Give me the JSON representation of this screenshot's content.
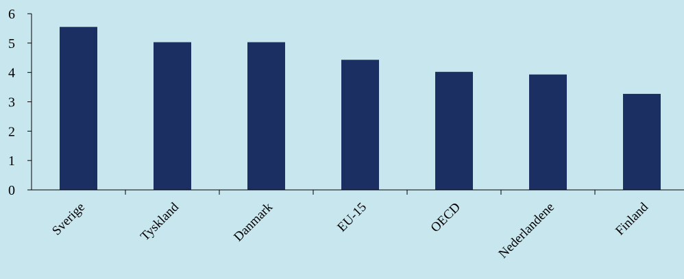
{
  "chart_data": {
    "type": "bar",
    "categories": [
      "Sverige",
      "Tyskland",
      "Danmark",
      "EU-15",
      "OECD",
      "Nederlandene",
      "Finland"
    ],
    "values": [
      5.55,
      5.03,
      5.03,
      4.43,
      4.02,
      3.93,
      3.27
    ],
    "title": "",
    "xlabel": "",
    "ylabel": "",
    "ylim": [
      0,
      6
    ],
    "yticks": [
      "0",
      "1",
      "2",
      "3",
      "4",
      "5",
      "6"
    ],
    "grid": false,
    "legend": "none",
    "bar_color": "#1c2f63",
    "background_color": "#c8e6ee"
  }
}
